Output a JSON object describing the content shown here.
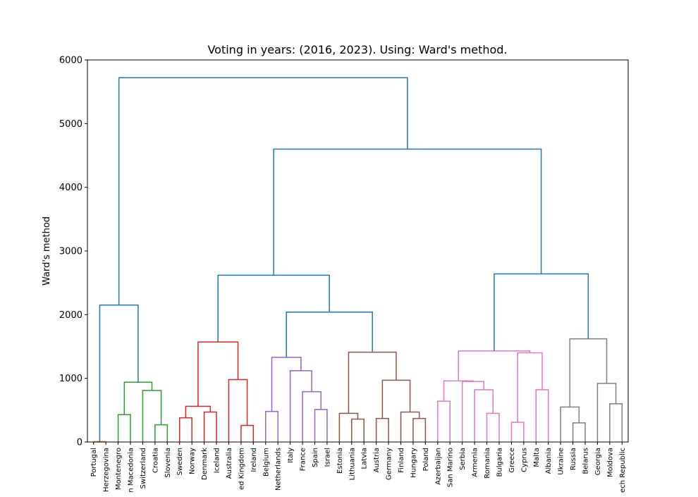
{
  "chart_data": {
    "type": "dendrogram",
    "title": "Voting in years: (2016, 2023). Using: Ward's method.",
    "y_label": "Ward's method",
    "ylim": [
      0,
      6000
    ],
    "yticks": [
      0,
      1000,
      2000,
      3000,
      4000,
      5000,
      6000
    ],
    "tree": {
      "height": 5720,
      "color": "#1f77b4",
      "children": [
        {
          "height": 2150,
          "color": "#1f77b4",
          "children": [
            {
              "height": 5,
              "color": "#ff7f0e",
              "children": [
                "Portugal",
                "Herzegovina"
              ]
            },
            {
              "height": 940,
              "color": "#2ca02c",
              "children": [
                {
                  "height": 430,
                  "color": "#2ca02c",
                  "children": [
                    "Montenegro",
                    "n Macedonia"
                  ]
                },
                {
                  "height": 810,
                  "color": "#2ca02c",
                  "children": [
                    "Switzerland",
                    {
                      "height": 270,
                      "color": "#2ca02c",
                      "children": [
                        "Croatia",
                        "Slovenia"
                      ]
                    }
                  ]
                }
              ]
            }
          ]
        },
        {
          "height": 4600,
          "color": "#1f77b4",
          "children": [
            {
              "height": 2620,
              "color": "#1f77b4",
              "children": [
                {
                  "height": 1570,
                  "color": "#d62728",
                  "children": [
                    {
                      "height": 560,
                      "color": "#d62728",
                      "children": [
                        {
                          "height": 380,
                          "color": "#d62728",
                          "children": [
                            "Sweden",
                            "Norway"
                          ]
                        },
                        {
                          "height": 470,
                          "color": "#d62728",
                          "children": [
                            "Denmark",
                            "Iceland"
                          ]
                        }
                      ]
                    },
                    {
                      "height": 980,
                      "color": "#d62728",
                      "children": [
                        "Australia",
                        {
                          "height": 260,
                          "color": "#d62728",
                          "children": [
                            "ed Kingdom",
                            "Ireland"
                          ]
                        }
                      ]
                    }
                  ]
                },
                {
                  "height": 2040,
                  "color": "#1f77b4",
                  "children": [
                    {
                      "height": 1330,
                      "color": "#9467bd",
                      "children": [
                        {
                          "height": 480,
                          "color": "#9467bd",
                          "children": [
                            "Belgium",
                            "Netherlands"
                          ]
                        },
                        {
                          "height": 1120,
                          "color": "#9467bd",
                          "children": [
                            "Italy",
                            {
                              "height": 790,
                              "color": "#9467bd",
                              "children": [
                                "France",
                                {
                                  "height": 510,
                                  "color": "#9467bd",
                                  "children": [
                                    "Spain",
                                    "Israel"
                                  ]
                                }
                              ]
                            }
                          ]
                        }
                      ]
                    },
                    {
                      "height": 1410,
                      "color": "#8c564b",
                      "children": [
                        {
                          "height": 450,
                          "color": "#8c564b",
                          "children": [
                            "Estonia",
                            {
                              "height": 360,
                              "color": "#8c564b",
                              "children": [
                                "Lithuania",
                                "Latvia"
                              ]
                            }
                          ]
                        },
                        {
                          "height": 970,
                          "color": "#8c564b",
                          "children": [
                            {
                              "height": 370,
                              "color": "#8c564b",
                              "children": [
                                "Austria",
                                "Germany"
                              ]
                            },
                            {
                              "height": 470,
                              "color": "#8c564b",
                              "children": [
                                "Finland",
                                {
                                  "height": 370,
                                  "color": "#8c564b",
                                  "children": [
                                    "Hungary",
                                    "Poland"
                                  ]
                                }
                              ]
                            }
                          ]
                        }
                      ]
                    }
                  ]
                }
              ]
            },
            {
              "height": 2640,
              "color": "#1f77b4",
              "children": [
                {
                  "height": 1430,
                  "color": "#e377c2",
                  "children": [
                    {
                      "height": 960,
                      "color": "#e377c2",
                      "children": [
                        {
                          "height": 640,
                          "color": "#e377c2",
                          "children": [
                            "Azerbaijan",
                            "San Marino"
                          ]
                        },
                        {
                          "height": 950,
                          "color": "#e377c2",
                          "children": [
                            "Serbia",
                            {
                              "height": 820,
                              "color": "#e377c2",
                              "children": [
                                "Armenia",
                                {
                                  "height": 450,
                                  "color": "#e377c2",
                                  "children": [
                                    "Romania",
                                    "Bulgaria"
                                  ]
                                }
                              ]
                            }
                          ]
                        }
                      ]
                    },
                    {
                      "height": 1400,
                      "color": "#e377c2",
                      "children": [
                        {
                          "height": 310,
                          "color": "#e377c2",
                          "children": [
                            "Greece",
                            "Cyprus"
                          ]
                        },
                        {
                          "height": 820,
                          "color": "#e377c2",
                          "children": [
                            "Malta",
                            "Albania"
                          ]
                        }
                      ]
                    }
                  ]
                },
                {
                  "height": 1620,
                  "color": "#7f7f7f",
                  "children": [
                    {
                      "height": 550,
                      "color": "#7f7f7f",
                      "children": [
                        "Ukraine",
                        {
                          "height": 300,
                          "color": "#7f7f7f",
                          "children": [
                            "Russia",
                            "Belarus"
                          ]
                        }
                      ]
                    },
                    {
                      "height": 920,
                      "color": "#7f7f7f",
                      "children": [
                        "Georgia",
                        {
                          "height": 600,
                          "color": "#7f7f7f",
                          "children": [
                            "Moldova",
                            "ech Republic"
                          ]
                        }
                      ]
                    }
                  ]
                }
              ]
            }
          ]
        }
      ]
    }
  }
}
